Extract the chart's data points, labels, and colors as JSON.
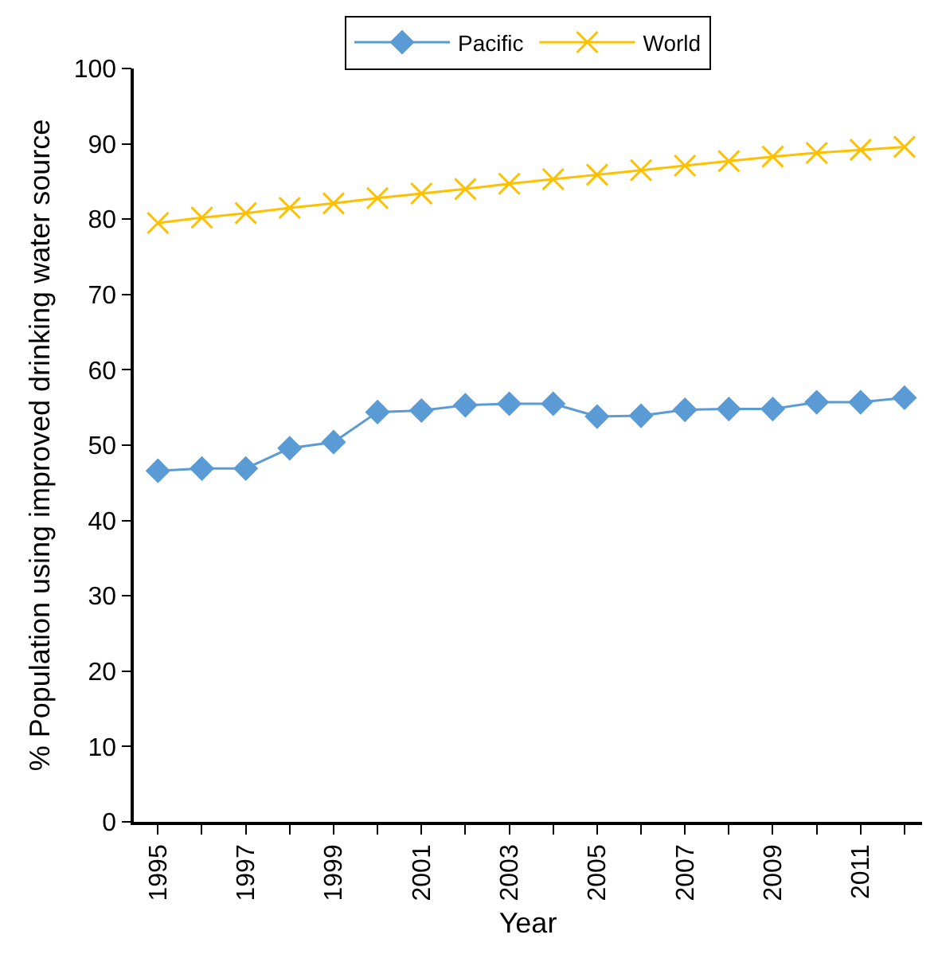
{
  "chart_data": {
    "type": "line",
    "xlabel": "Year",
    "ylabel": "% Population using improved drinking water source",
    "x": [
      1995,
      1996,
      1997,
      1998,
      1999,
      2000,
      2001,
      2002,
      2003,
      2004,
      2005,
      2006,
      2007,
      2008,
      2009,
      2010,
      2011,
      2012
    ],
    "series": [
      {
        "name": "Pacific",
        "color": "#5b9bd5",
        "marker": "diamond",
        "values": [
          46.6,
          46.9,
          46.9,
          49.6,
          50.4,
          54.4,
          54.6,
          55.3,
          55.5,
          55.5,
          53.8,
          53.9,
          54.7,
          54.8,
          54.8,
          55.7,
          55.7,
          56.3
        ]
      },
      {
        "name": "World",
        "color": "#ffc000",
        "marker": "cross",
        "values": [
          79.5,
          80.2,
          80.8,
          81.5,
          82.1,
          82.8,
          83.4,
          84.0,
          84.7,
          85.3,
          85.9,
          86.5,
          87.1,
          87.7,
          88.3,
          88.8,
          89.2,
          89.6
        ]
      }
    ],
    "xlim": [
      1994.45,
      2012.4
    ],
    "xticks": [
      1995,
      {
        "value": 1996,
        "label": null
      },
      1997,
      {
        "value": 1998,
        "label": null
      },
      1999,
      {
        "value": 2000,
        "label": null
      },
      2001,
      {
        "value": 2002,
        "label": null
      },
      2003,
      {
        "value": 2004,
        "label": null
      },
      2005,
      {
        "value": 2006,
        "label": null
      },
      2007,
      {
        "value": 2008,
        "label": null
      },
      2009,
      {
        "value": 2010,
        "label": null
      },
      2011,
      {
        "value": 2012,
        "label": null
      }
    ],
    "ylim": [
      0,
      100
    ],
    "yticks": [
      0,
      10,
      20,
      30,
      40,
      50,
      60,
      70,
      80,
      90,
      100
    ],
    "legend": "top",
    "line_style": "solid"
  }
}
